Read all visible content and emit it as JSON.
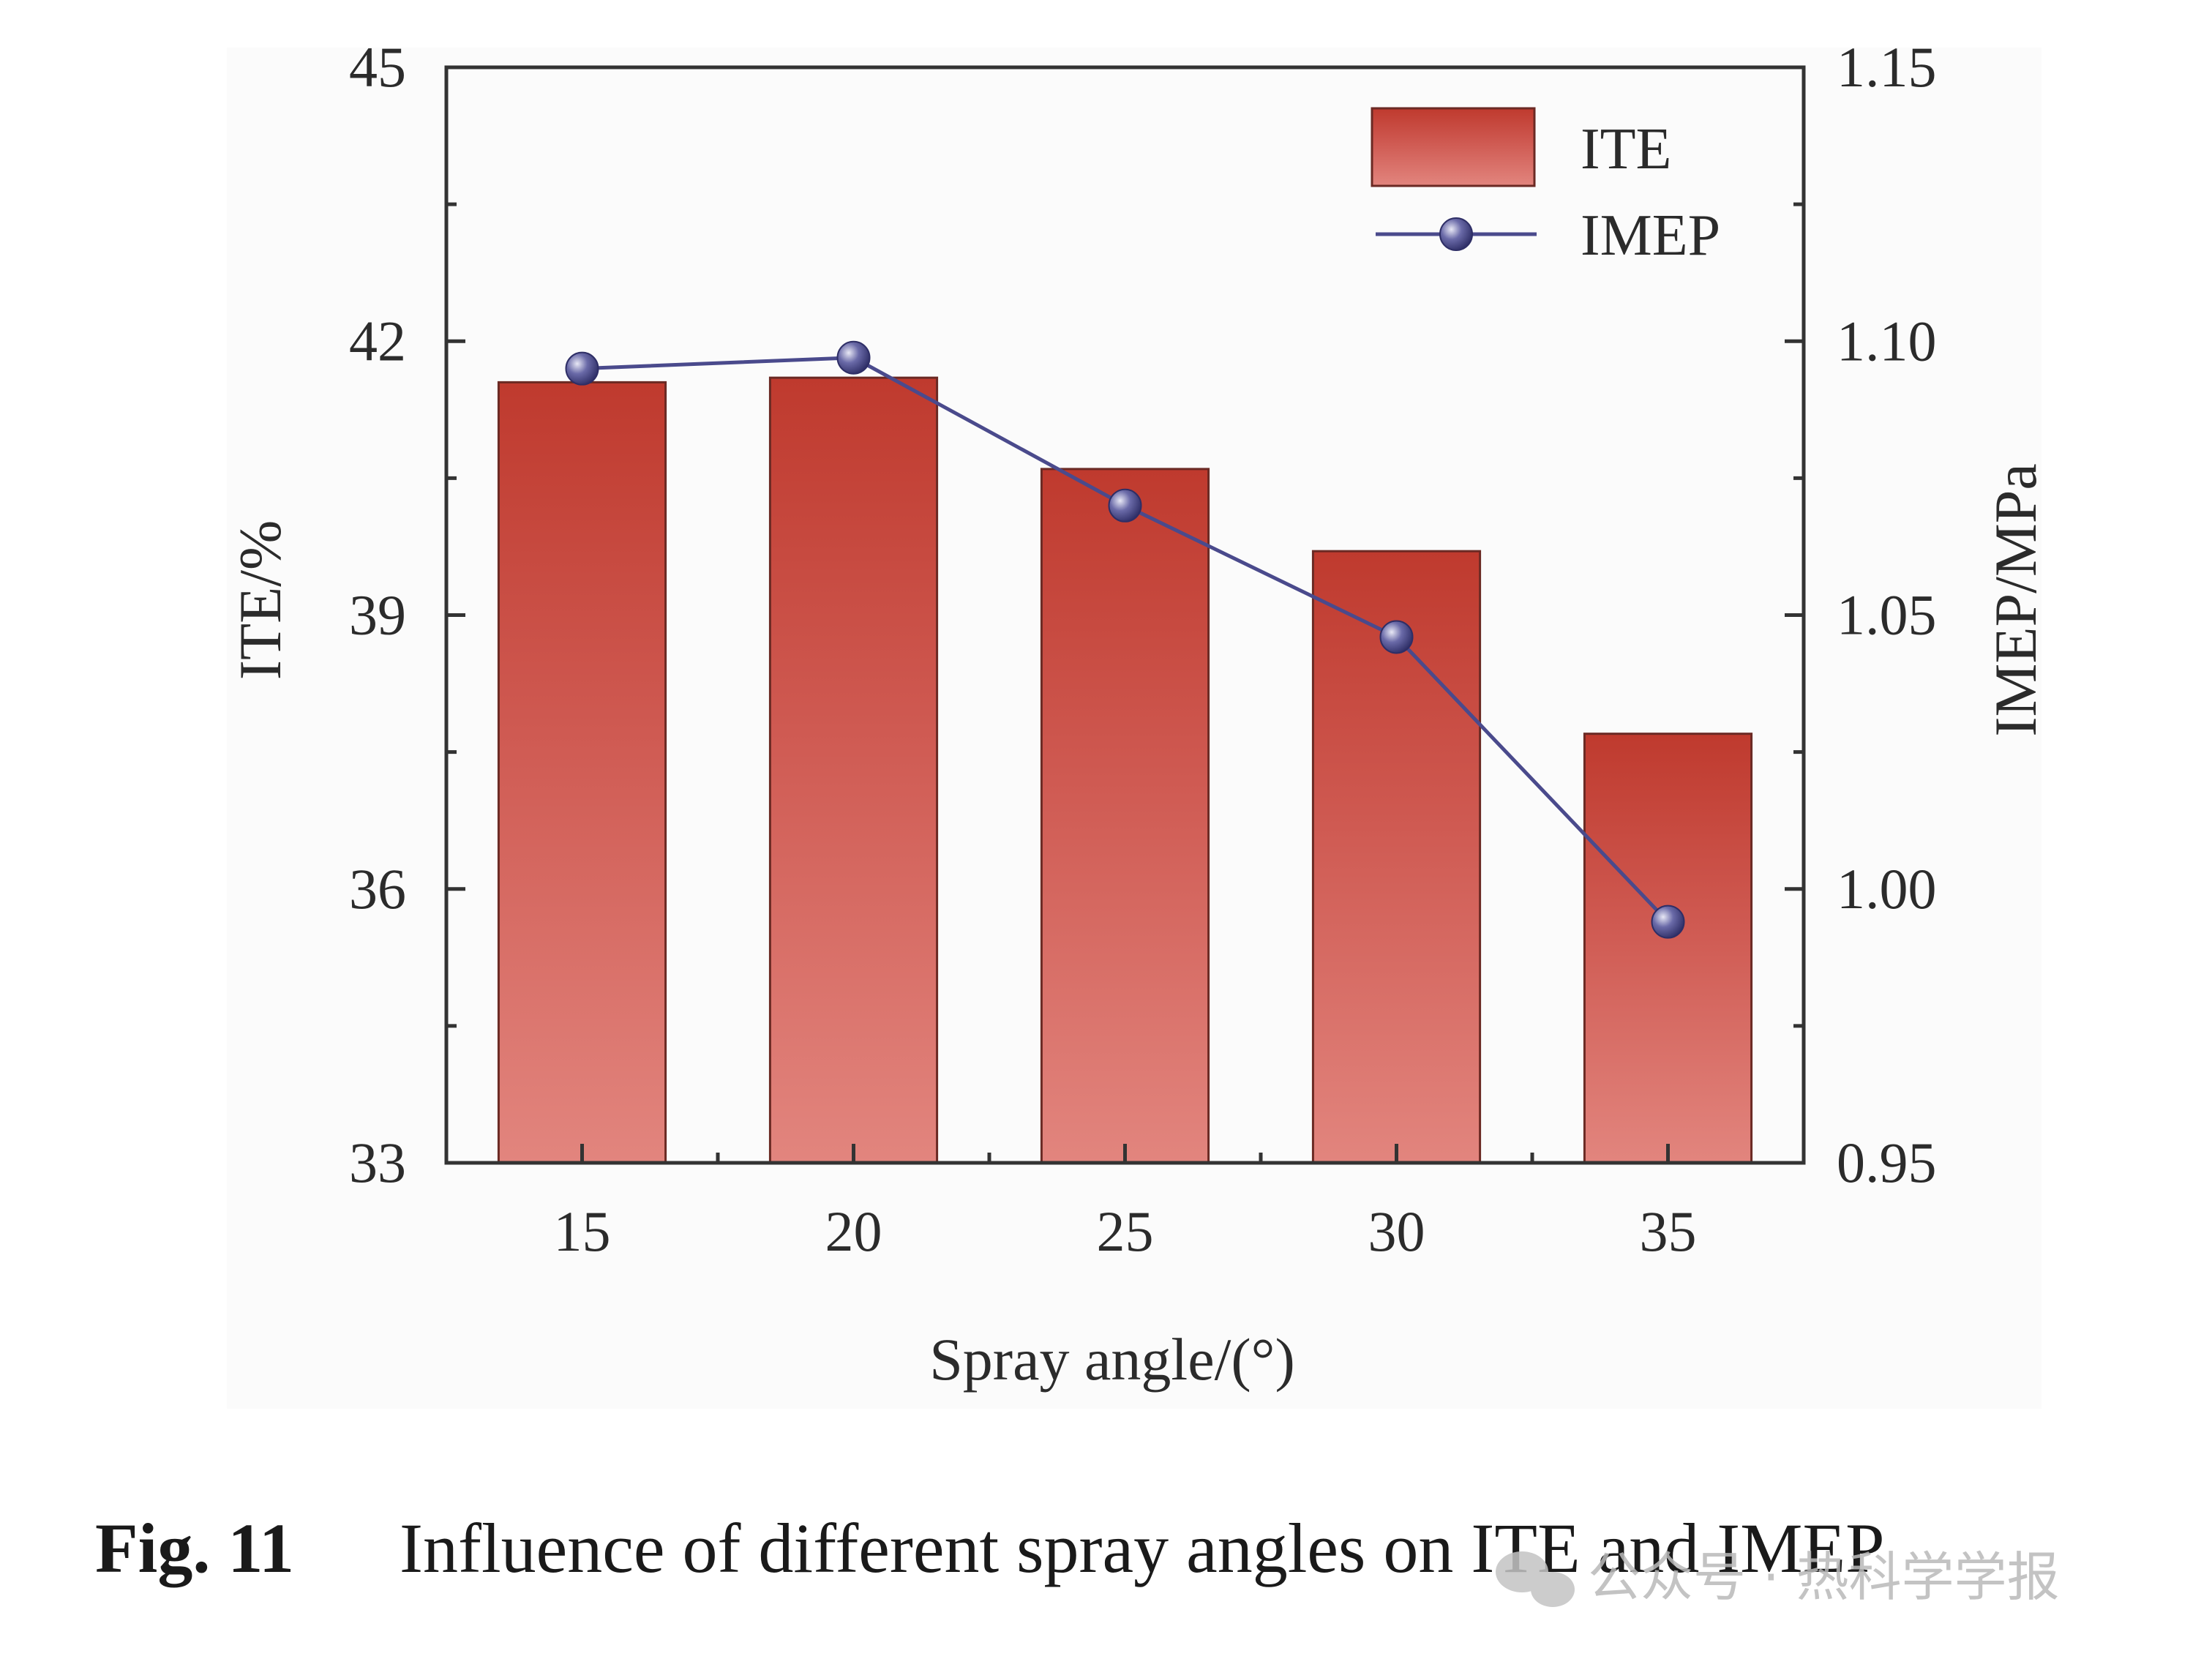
{
  "chart_data": {
    "type": "bar",
    "categories": [
      "15",
      "20",
      "25",
      "30",
      "35"
    ],
    "series": [
      {
        "name": "ITE",
        "type": "bar",
        "axis": "left",
        "values": [
          41.55,
          41.6,
          40.6,
          39.7,
          37.7
        ],
        "color": "#c0392b",
        "color_light": "#e2857e"
      },
      {
        "name": "IMEP",
        "type": "line",
        "axis": "right",
        "values": [
          1.095,
          1.097,
          1.07,
          1.046,
          0.994
        ],
        "color": "#4a4a8c"
      }
    ],
    "xlabel": "Spray angle/(°)",
    "ylabel": "ITE/%",
    "y2label": "IMEP/MPa",
    "ylim": [
      33,
      45
    ],
    "y2lim": [
      0.95,
      1.15
    ],
    "yticks": [
      "33",
      "36",
      "39",
      "42",
      "45"
    ],
    "y2ticks": [
      "0.95",
      "1.00",
      "1.05",
      "1.10",
      "1.15"
    ],
    "legend_position": "top-right",
    "grid": false
  },
  "caption": {
    "label": "Fig. 11",
    "text": "Influence of different spray angles on ITE and IMEP"
  },
  "watermark": {
    "text": "公众号 · 热科学学报"
  }
}
